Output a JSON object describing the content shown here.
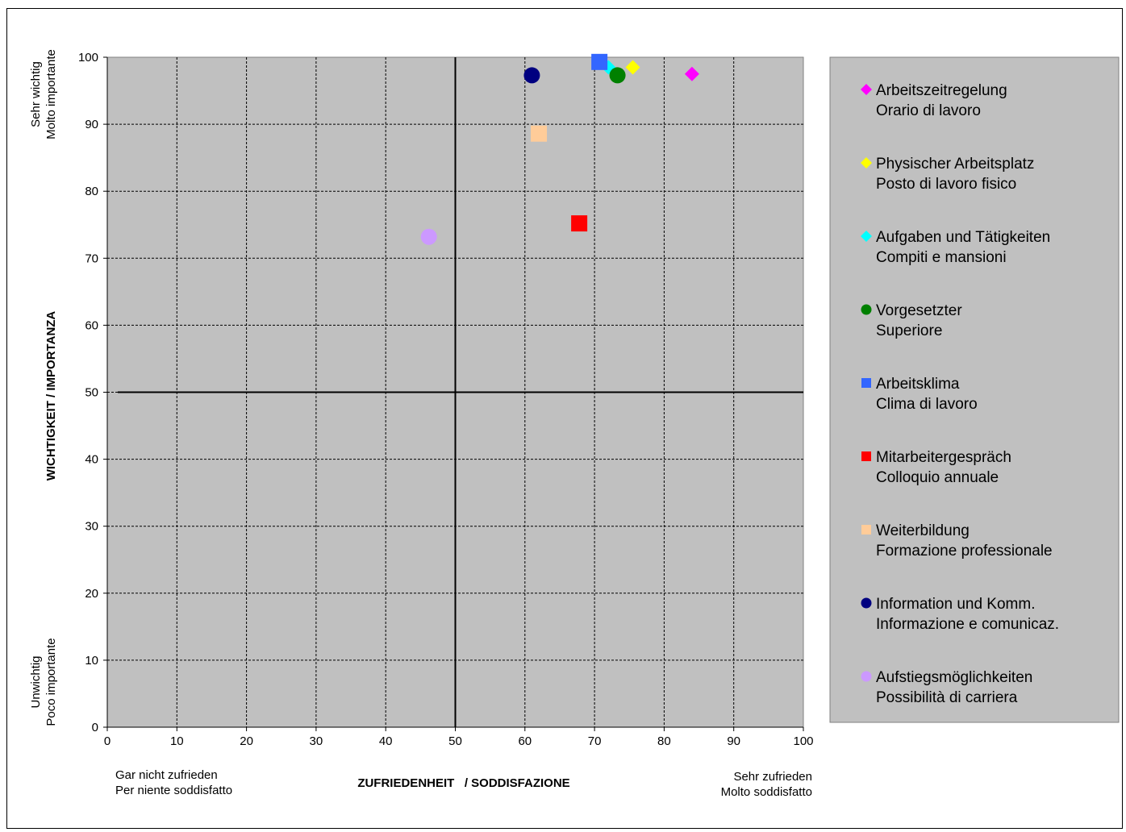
{
  "chart_data": {
    "type": "scatter",
    "xlim": [
      0,
      100
    ],
    "ylim": [
      0,
      100
    ],
    "x_ticks": [
      0,
      10,
      20,
      30,
      40,
      50,
      60,
      70,
      80,
      90,
      100
    ],
    "y_ticks": [
      0,
      10,
      20,
      30,
      40,
      50,
      60,
      70,
      80,
      90,
      100
    ],
    "xlabel": "ZUFRIEDENHEIT   / SODDISFAZIONE",
    "ylabel": "WICHTIGKEIT / IMPORTANZA",
    "reference_lines": {
      "x": 50,
      "y": 50
    },
    "grid": true,
    "background_color": "#c0c0c0",
    "legend_placement": "right",
    "annotations": {
      "x_low_line1": "Gar nicht zufrieden",
      "x_low_line2": "Per niente soddisfatto",
      "x_high_line1": "Sehr zufrieden",
      "x_high_line2": "Molto soddisfatto",
      "y_high_line1": "Sehr wichtig",
      "y_high_line2": "Molto importante",
      "y_low_line1": "Unwichtig",
      "y_low_line2": "Poco importante"
    },
    "series": [
      {
        "name": "Arbeitszeitregelung",
        "name2": "Orario di lavoro",
        "marker": "diamond",
        "color": "#ff00ff",
        "x": 84,
        "y": 97.5
      },
      {
        "name": "Physischer Arbeitsplatz",
        "name2": "Posto di lavoro fisico",
        "marker": "diamond",
        "color": "#ffff00",
        "x": 75.5,
        "y": 98.5
      },
      {
        "name": "Aufgaben und Tätigkeiten",
        "name2": "Compiti e mansioni",
        "marker": "diamond",
        "color": "#00ffff",
        "x": 72,
        "y": 98.5
      },
      {
        "name": "Vorgesetzter",
        "name2": "Superiore",
        "marker": "circle",
        "color": "#008000",
        "x": 73.3,
        "y": 97.3
      },
      {
        "name": "Arbeitsklima",
        "name2": "Clima di lavoro",
        "marker": "square",
        "color": "#3366ff",
        "x": 70.7,
        "y": 99.3
      },
      {
        "name": "Mitarbeitergespräch",
        "name2": "Colloquio annuale",
        "marker": "square",
        "color": "#ff0000",
        "x": 67.8,
        "y": 75.2
      },
      {
        "name": "Weiterbildung",
        "name2": "Formazione professionale",
        "marker": "square",
        "color": "#ffcc99",
        "x": 62,
        "y": 88.6
      },
      {
        "name": "Information und Komm.",
        "name2": "Informazione e comunicaz.",
        "marker": "circle",
        "color": "#000080",
        "x": 61,
        "y": 97.3
      },
      {
        "name": "Aufstiegsmöglichkeiten",
        "name2": "Possibilità di carriera",
        "marker": "circle",
        "color": "#cc99ff",
        "x": 46.2,
        "y": 73.2
      }
    ]
  }
}
